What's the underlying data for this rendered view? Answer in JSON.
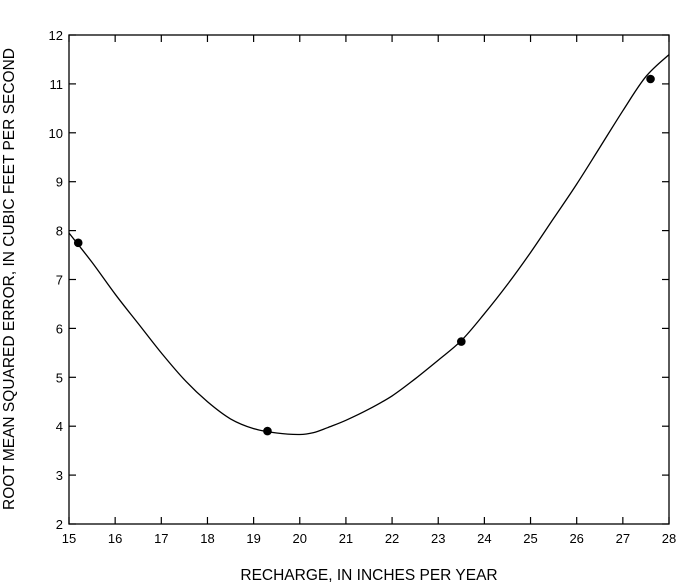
{
  "chart_data": {
    "type": "line",
    "xlabel": "RECHARGE, IN INCHES PER YEAR",
    "ylabel": "ROOT MEAN SQUARED ERROR, IN CUBIC FEET PER SECOND",
    "xlim": [
      15,
      28
    ],
    "ylim": [
      2,
      12
    ],
    "x_ticks": [
      15,
      16,
      17,
      18,
      19,
      20,
      21,
      22,
      23,
      24,
      25,
      26,
      27,
      28
    ],
    "y_ticks": [
      2,
      3,
      4,
      5,
      6,
      7,
      8,
      9,
      10,
      11,
      12
    ],
    "grid": false,
    "points": {
      "x": [
        15.2,
        19.3,
        23.5,
        27.6
      ],
      "y": [
        7.75,
        3.9,
        5.73,
        11.1
      ]
    },
    "curve": {
      "x": [
        15.0,
        15.5,
        16.0,
        16.5,
        17.0,
        17.5,
        18.0,
        18.5,
        19.0,
        19.5,
        20.0,
        20.3,
        20.6,
        21.0,
        21.5,
        22.0,
        22.5,
        23.0,
        23.5,
        24.0,
        24.5,
        25.0,
        25.5,
        26.0,
        26.5,
        27.0,
        27.5,
        28.0
      ],
      "y": [
        7.95,
        7.35,
        6.7,
        6.1,
        5.5,
        4.95,
        4.5,
        4.15,
        3.95,
        3.86,
        3.83,
        3.87,
        3.97,
        4.12,
        4.35,
        4.62,
        4.97,
        5.35,
        5.75,
        6.3,
        6.9,
        7.55,
        8.25,
        8.95,
        9.7,
        10.45,
        11.15,
        11.6
      ]
    }
  }
}
